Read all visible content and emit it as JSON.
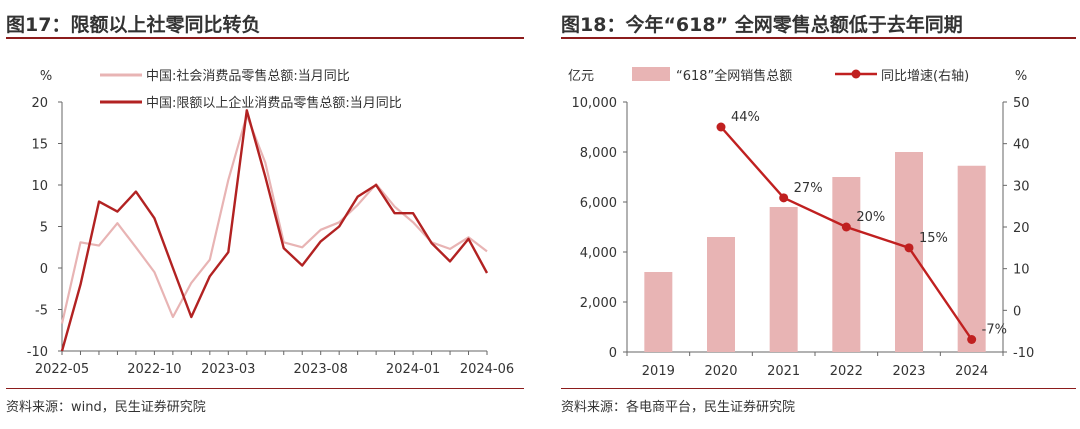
{
  "left": {
    "title": "图17：限额以上社零同比转负",
    "source": "资料来源：wind，民生证券研究院",
    "colors": {
      "line_total": "#e8b4b4",
      "line_above": "#b22222"
    },
    "chart_data": {
      "type": "line",
      "ylabel": "%",
      "ylim": [
        -10,
        20
      ],
      "yticks": [
        "-10",
        "-5",
        "0",
        "5",
        "10",
        "15",
        "20"
      ],
      "x": [
        "2022-05",
        "2022-06",
        "2022-07",
        "2022-08",
        "2022-09",
        "2022-10",
        "2022-11",
        "2022-12",
        "2023-01",
        "2023-03",
        "2023-04",
        "2023-05",
        "2023-06",
        "2023-07",
        "2023-08",
        "2023-09",
        "2023-10",
        "2023-11",
        "2023-12",
        "2024-01",
        "2024-03",
        "2024-04",
        "2024-05",
        "2024-06"
      ],
      "xtick_labels": [
        "2022-05",
        "2022-10",
        "2023-03",
        "2023-08",
        "2024-01",
        "2024-06"
      ],
      "legend": [
        "中国:社会消费品零售总额:当月同比",
        "中国:限额以上企业消费品零售总额:当月同比"
      ],
      "series": [
        {
          "name": "中国:社会消费品零售总额:当月同比",
          "values": [
            -6.7,
            3.1,
            2.7,
            5.4,
            2.5,
            -0.5,
            -5.9,
            -1.8,
            1.0,
            10.6,
            18.4,
            12.7,
            3.1,
            2.5,
            4.6,
            5.5,
            7.6,
            10.1,
            7.4,
            5.5,
            3.1,
            2.3,
            3.7,
            2.0
          ]
        },
        {
          "name": "中国:限额以上企业消费品零售总额:当月同比",
          "values": [
            -10.0,
            -2.0,
            8.0,
            6.8,
            9.2,
            6.0,
            0.0,
            -5.9,
            -1.0,
            1.9,
            19.0,
            11.0,
            2.4,
            0.3,
            3.2,
            5.0,
            8.6,
            10.0,
            6.6,
            6.6,
            3.0,
            0.8,
            3.5,
            -0.6
          ]
        }
      ]
    }
  },
  "right": {
    "title": "图18：今年“618” 全网零售总额低于去年同期",
    "source": "资料来源：各电商平台，民生证券研究院",
    "colors": {
      "bar": "#e8b4b4",
      "line": "#c02020"
    },
    "chart_data": {
      "type": "bar",
      "categories": [
        "2019",
        "2020",
        "2021",
        "2022",
        "2023",
        "2024"
      ],
      "ylabel_left": "亿元",
      "ylabel_right": "%",
      "ylim_left": [
        0,
        10000
      ],
      "ylim_right": [
        -10,
        50
      ],
      "yticks_left": [
        "0",
        "2,000",
        "4,000",
        "6,000",
        "8,000",
        "10,000"
      ],
      "yticks_right": [
        "-10",
        "0",
        "10",
        "20",
        "30",
        "40",
        "50"
      ],
      "legend": [
        "“618”全网销售总额",
        "同比增速(右轴)"
      ],
      "series": [
        {
          "name": "“618”全网销售总额",
          "type": "bar",
          "values": [
            3200,
            4600,
            5800,
            7000,
            8000,
            7450
          ]
        },
        {
          "name": "同比增速(右轴)",
          "type": "line",
          "values": [
            null,
            44,
            27,
            20,
            15,
            -7
          ],
          "labels": [
            "",
            "44%",
            "27%",
            "20%",
            "15%",
            "-7%"
          ]
        }
      ]
    }
  }
}
